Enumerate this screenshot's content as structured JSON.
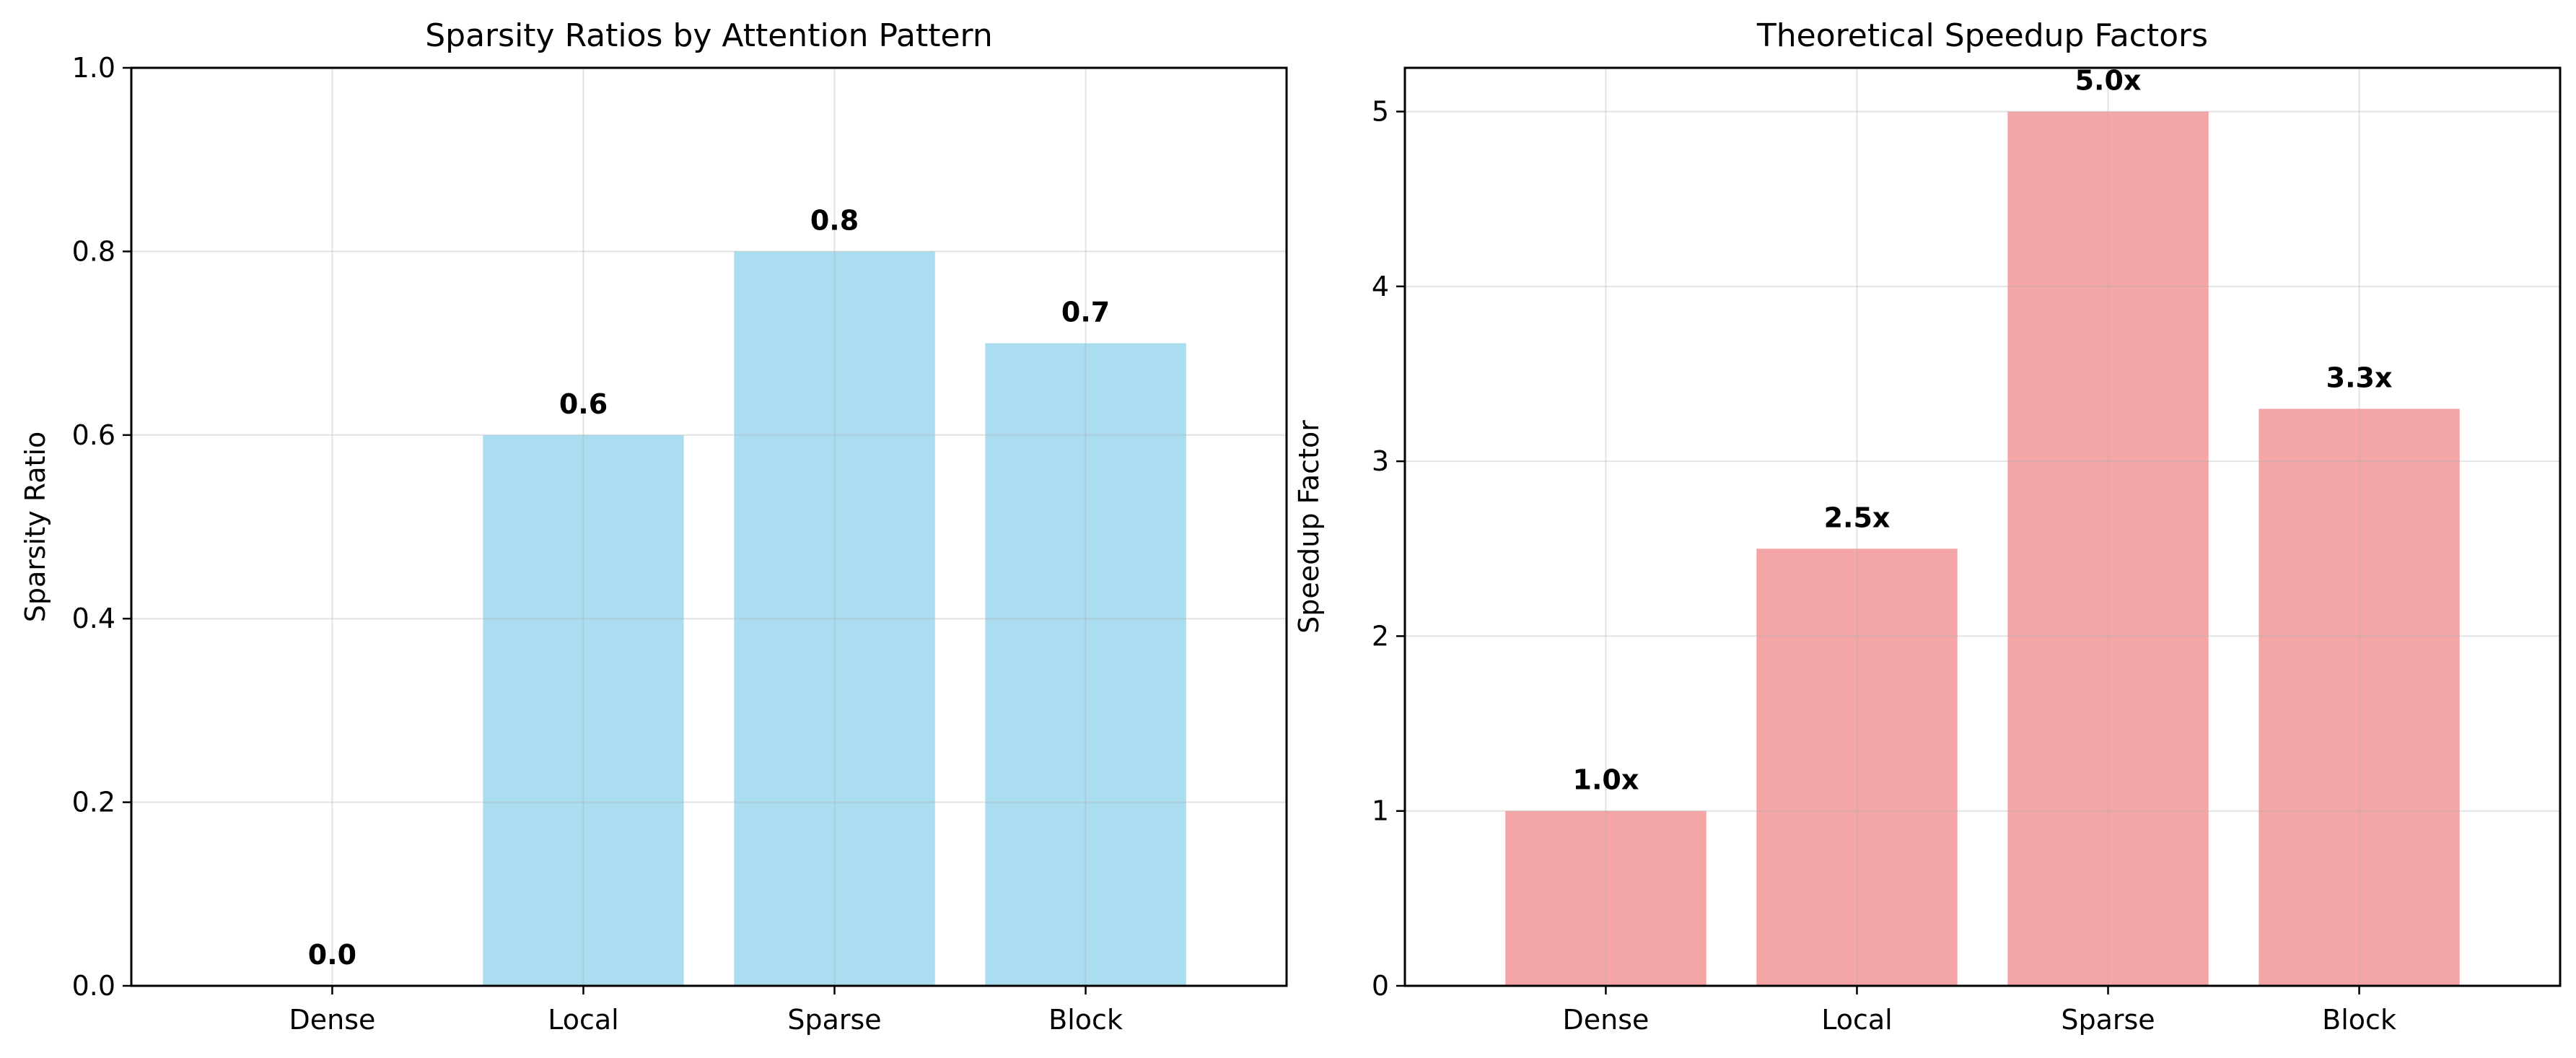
{
  "chart_data": [
    {
      "type": "bar",
      "title": "Sparsity Ratios by Attention Pattern",
      "xlabel": "",
      "ylabel": "Sparsity Ratio",
      "categories": [
        "Dense",
        "Local",
        "Sparse",
        "Block"
      ],
      "values": [
        0.0,
        0.6,
        0.8,
        0.7
      ],
      "data_labels": [
        "0.0",
        "0.6",
        "0.8",
        "0.7"
      ],
      "ylim": [
        0,
        1.0
      ],
      "yticks": [
        "0.0",
        "0.2",
        "0.4",
        "0.6",
        "0.8",
        "1.0"
      ],
      "grid": true,
      "color": "#87ceeb"
    },
    {
      "type": "bar",
      "title": "Theoretical Speedup Factors",
      "xlabel": "",
      "ylabel": "Speedup Factor",
      "categories": [
        "Dense",
        "Local",
        "Sparse",
        "Block"
      ],
      "values": [
        1.0,
        2.5,
        5.0,
        3.3
      ],
      "data_labels": [
        "1.0x",
        "2.5x",
        "5.0x",
        "3.3x"
      ],
      "ylim": [
        0,
        5.25
      ],
      "yticks": [
        "0",
        "1",
        "2",
        "3",
        "4",
        "5"
      ],
      "grid": true,
      "color": "#f08080"
    }
  ]
}
